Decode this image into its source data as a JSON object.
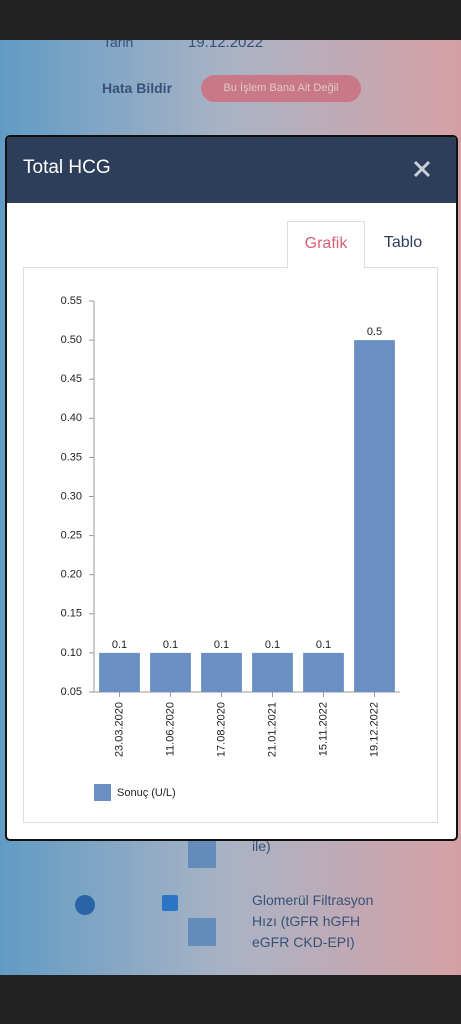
{
  "background": {
    "date_label": "Tarih",
    "date_value": "19.12.2022",
    "report_label": "Hata Bildir",
    "report_button": "Bu İşlem Bana Ait Değil",
    "item_tail": "ile)",
    "item_name": "Glomerül Filtrasyon Hızı (tGFR hGFH eGFR CKD-EPI)"
  },
  "modal": {
    "title": "Total HCG",
    "tabs": [
      "Grafik",
      "Tablo"
    ]
  },
  "chart_data": {
    "type": "bar",
    "categories": [
      "23.03.2020",
      "11.06.2020",
      "17.08.2020",
      "21.01.2021",
      "15.11.2022",
      "19.12.2022"
    ],
    "series": [
      {
        "name": "Sonuç (U/L)",
        "color": "#6a8fc2",
        "values": [
          0.1,
          0.1,
          0.1,
          0.1,
          0.1,
          0.5
        ]
      }
    ],
    "ylim": [
      0.05,
      0.55
    ],
    "yticks": [
      0.05,
      {
        "value": 0.1,
        "label": "0.10"
      },
      0.15,
      {
        "value": 0.2,
        "label": "0.20"
      },
      0.25,
      {
        "value": 0.3,
        "label": "0.30"
      },
      0.35,
      {
        "value": 0.4,
        "label": "0.40"
      },
      0.45,
      {
        "value": 0.5,
        "label": "0.50"
      },
      0.55
    ]
  }
}
